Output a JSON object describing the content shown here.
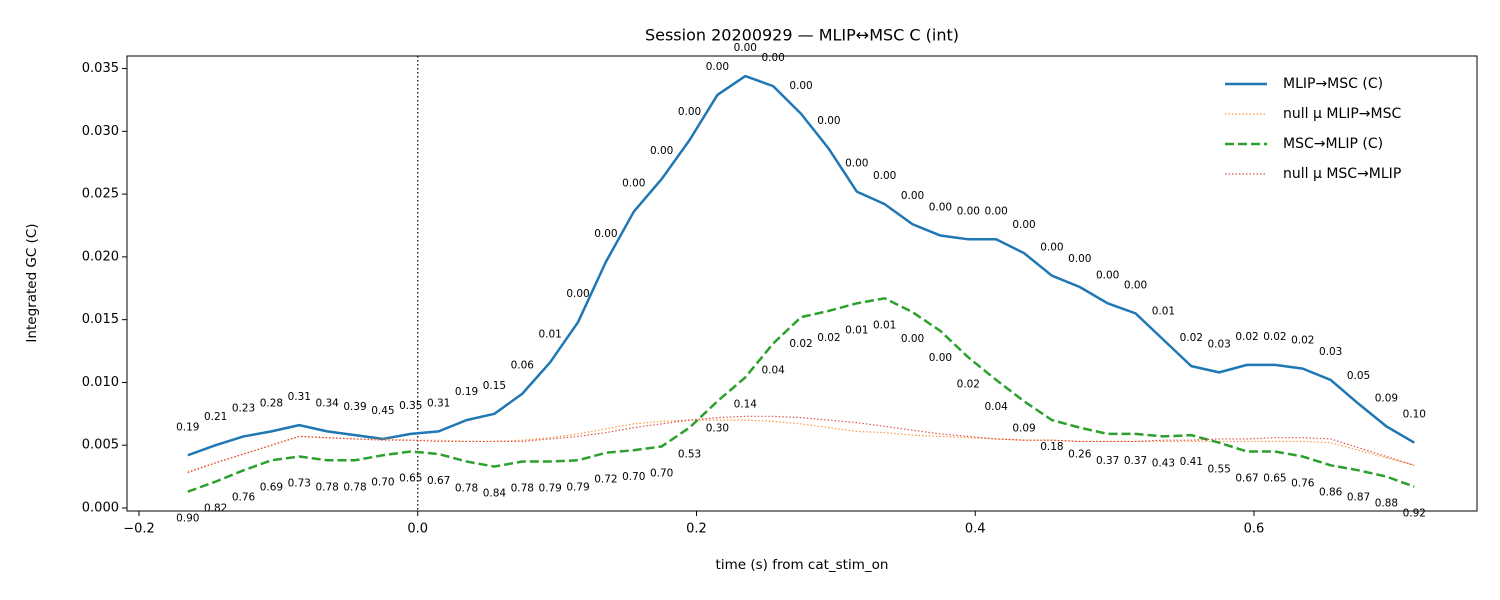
{
  "chart_data": {
    "type": "line",
    "title": "Session 20200929 — MLIP↔MSC C (int)",
    "xlabel": "time (s) from cat_stim_on",
    "ylabel": "Integrated GC (C)",
    "x": [
      -0.165,
      -0.145,
      -0.125,
      -0.105,
      -0.085,
      -0.065,
      -0.045,
      -0.025,
      -0.005,
      0.015,
      0.035,
      0.055,
      0.075,
      0.095,
      0.115,
      0.135,
      0.155,
      0.175,
      0.195,
      0.215,
      0.235,
      0.255,
      0.275,
      0.295,
      0.315,
      0.335,
      0.355,
      0.375,
      0.395,
      0.415,
      0.435,
      0.455,
      0.475,
      0.495,
      0.515,
      0.535,
      0.555,
      0.575,
      0.595,
      0.615,
      0.635,
      0.655,
      0.675,
      0.695,
      0.715
    ],
    "xlim": [
      -0.2086,
      0.76
    ],
    "xticks": [
      {
        "value": -0.2,
        "label": "−0.2"
      },
      {
        "value": 0.0,
        "label": "0.0"
      },
      0.2,
      0.4,
      0.6
    ],
    "ylim": [
      -0.00024,
      0.036
    ],
    "yticks": [
      {
        "value": 0,
        "label": "0.000"
      },
      {
        "value": 0.005,
        "label": "0.005"
      },
      {
        "value": 0.01,
        "label": "0.010"
      },
      {
        "value": 0.015,
        "label": "0.015"
      },
      {
        "value": 0.02,
        "label": "0.020"
      },
      {
        "value": 0.025,
        "label": "0.025"
      },
      {
        "value": 0.03,
        "label": "0.030"
      },
      {
        "value": 0.035,
        "label": "0.035"
      }
    ],
    "vline_x": 0,
    "legend": "upper right",
    "series": [
      {
        "name": "MLIP→MSC (C)",
        "color": "#1f77b4",
        "linestyle": "solid",
        "values": [
          0.0042,
          0.005,
          0.0057,
          0.0061,
          0.0066,
          0.0061,
          0.0058,
          0.0055,
          0.0059,
          0.0061,
          0.007,
          0.0075,
          0.0091,
          0.0116,
          0.0148,
          0.0196,
          0.0236,
          0.0262,
          0.0293,
          0.0329,
          0.0344,
          0.0336,
          0.0314,
          0.0286,
          0.0252,
          0.0242,
          0.0226,
          0.0217,
          0.0214,
          0.0214,
          0.0203,
          0.0185,
          0.0176,
          0.0163,
          0.0155,
          0.0134,
          0.0113,
          0.0108,
          0.0114,
          0.0114,
          0.0111,
          0.0102,
          0.0083,
          0.0065,
          0.0052
        ],
        "point_labels": [
          "0.19",
          "0.21",
          "0.23",
          "0.28",
          "0.31",
          "0.34",
          "0.39",
          "0.45",
          "0.35",
          "0.31",
          "0.19",
          "0.15",
          "0.06",
          "0.01",
          "0.00",
          "0.00",
          "0.00",
          "0.00",
          "0.00",
          "0.00",
          "0.00",
          "0.00",
          "0.00",
          "0.00",
          "0.00",
          "0.00",
          "0.00",
          "0.00",
          "0.00",
          "0.00",
          "0.00",
          "0.00",
          "0.00",
          "0.00",
          "0.00",
          "0.01",
          "0.02",
          "0.03",
          "0.02",
          "0.02",
          "0.02",
          "0.03",
          "0.05",
          "0.09",
          "0.10"
        ]
      },
      {
        "name": "null μ MLIP→MSC",
        "color": "#ff7f0e",
        "linestyle": "dotted",
        "values": [
          0.0029,
          0.0036,
          0.0043,
          0.005,
          0.0057,
          0.0056,
          0.0055,
          0.0055,
          0.0054,
          0.0054,
          0.0053,
          0.0053,
          0.0054,
          0.0056,
          0.0059,
          0.0063,
          0.0067,
          0.0069,
          0.007,
          0.007,
          0.007,
          0.0069,
          0.0067,
          0.0064,
          0.0061,
          0.006,
          0.0058,
          0.0057,
          0.0056,
          0.0055,
          0.0054,
          0.0054,
          0.0053,
          0.0053,
          0.0053,
          0.0053,
          0.0053,
          0.0053,
          0.0053,
          0.0053,
          0.0053,
          0.0052,
          0.0046,
          0.004,
          0.0034
        ]
      },
      {
        "name": "MSC→MLIP (C)",
        "color": "#2ca02c",
        "linestyle": "dashed",
        "values": [
          0.0013,
          0.0021,
          0.003,
          0.0038,
          0.0041,
          0.0038,
          0.0038,
          0.0042,
          0.0045,
          0.0043,
          0.0037,
          0.0033,
          0.0037,
          0.0037,
          0.0038,
          0.0044,
          0.0046,
          0.0049,
          0.0064,
          0.0085,
          0.0104,
          0.0131,
          0.0152,
          0.0157,
          0.0163,
          0.0167,
          0.0156,
          0.0141,
          0.012,
          0.0102,
          0.0085,
          0.007,
          0.0064,
          0.0059,
          0.0059,
          0.0057,
          0.0058,
          0.0052,
          0.0045,
          0.0045,
          0.0041,
          0.0034,
          0.003,
          0.0025,
          0.0017
        ],
        "point_labels": [
          "0.90",
          "0.82",
          "0.76",
          "0.69",
          "0.73",
          "0.78",
          "0.78",
          "0.70",
          "0.65",
          "0.67",
          "0.78",
          "0.84",
          "0.78",
          "0.79",
          "0.79",
          "0.72",
          "0.70",
          "0.70",
          "0.53",
          "0.30",
          "0.14",
          "0.04",
          "0.02",
          "0.02",
          "0.01",
          "0.01",
          "0.00",
          "0.00",
          "0.02",
          "0.04",
          "0.09",
          "0.18",
          "0.26",
          "0.37",
          "0.37",
          "0.43",
          "0.41",
          "0.55",
          "0.67",
          "0.65",
          "0.76",
          "0.86",
          "0.87",
          "0.88",
          "0.92"
        ]
      },
      {
        "name": "null μ MSC→MLIP",
        "color": "#d62728",
        "linestyle": "dotted",
        "values": [
          0.0028,
          0.0036,
          0.0043,
          0.005,
          0.0057,
          0.0056,
          0.0055,
          0.0054,
          0.0054,
          0.0053,
          0.0053,
          0.0053,
          0.0053,
          0.0055,
          0.0057,
          0.006,
          0.0064,
          0.0067,
          0.007,
          0.0072,
          0.0073,
          0.0073,
          0.0072,
          0.007,
          0.0068,
          0.0065,
          0.0062,
          0.0059,
          0.0057,
          0.0055,
          0.0054,
          0.0054,
          0.0053,
          0.0053,
          0.0053,
          0.0054,
          0.0054,
          0.0055,
          0.0055,
          0.0056,
          0.0056,
          0.0055,
          0.0048,
          0.0041,
          0.0034
        ]
      }
    ]
  }
}
